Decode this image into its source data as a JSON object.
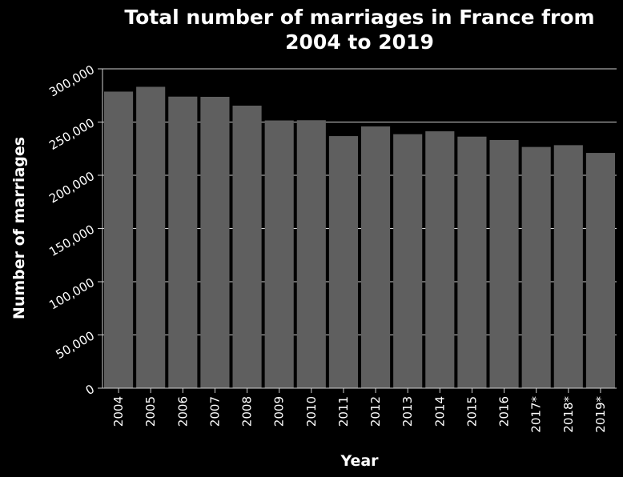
{
  "chart_data": {
    "type": "bar",
    "title_lines": [
      "Total number of marriages in France from",
      "2004 to 2019"
    ],
    "xlabel": "Year",
    "ylabel": "Number of marriages",
    "categories": [
      "2004",
      "2005",
      "2006",
      "2007",
      "2008",
      "2009",
      "2010",
      "2011",
      "2012",
      "2013",
      "2014",
      "2015",
      "2016",
      "2017*",
      "2018*",
      "2019*"
    ],
    "values": [
      278600,
      283100,
      273900,
      273700,
      265400,
      251500,
      251700,
      236800,
      245900,
      238600,
      241300,
      236300,
      233100,
      226600,
      228300,
      221000
    ],
    "ylim": [
      0,
      300000
    ],
    "yticks": [
      0,
      50000,
      100000,
      150000,
      200000,
      250000,
      300000
    ],
    "ytick_labels": [
      "0",
      "50,000",
      "100,000",
      "150,000",
      "200,000",
      "250,000",
      "300,000"
    ],
    "grid": true,
    "bar_color": "#5f5f5f",
    "background": "#000000",
    "text_color": "#ffffff"
  }
}
